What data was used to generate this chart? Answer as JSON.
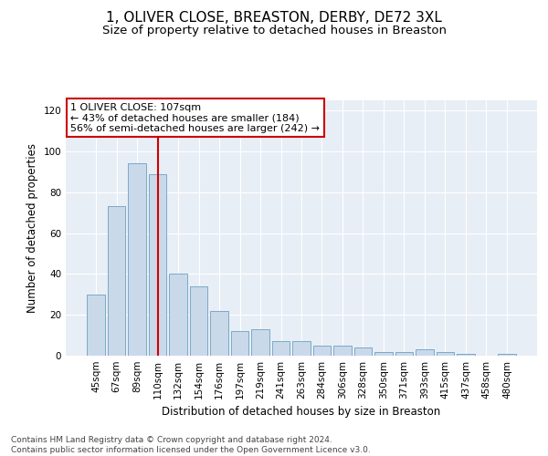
{
  "title": "1, OLIVER CLOSE, BREASTON, DERBY, DE72 3XL",
  "subtitle": "Size of property relative to detached houses in Breaston",
  "xlabel": "Distribution of detached houses by size in Breaston",
  "ylabel": "Number of detached properties",
  "categories": [
    "45sqm",
    "67sqm",
    "89sqm",
    "110sqm",
    "132sqm",
    "154sqm",
    "176sqm",
    "197sqm",
    "219sqm",
    "241sqm",
    "263sqm",
    "284sqm",
    "306sqm",
    "328sqm",
    "350sqm",
    "371sqm",
    "393sqm",
    "415sqm",
    "437sqm",
    "458sqm",
    "480sqm"
  ],
  "values": [
    30,
    73,
    94,
    89,
    40,
    34,
    22,
    12,
    13,
    7,
    7,
    5,
    5,
    4,
    2,
    2,
    3,
    2,
    1,
    0,
    1
  ],
  "bar_color": "#c9d9ea",
  "bar_edge_color": "#7aaac8",
  "vline_x_index": 3,
  "vline_color": "#cc0000",
  "annotation_text": "1 OLIVER CLOSE: 107sqm\n← 43% of detached houses are smaller (184)\n56% of semi-detached houses are larger (242) →",
  "annotation_box_color": "#ffffff",
  "annotation_box_edge": "#cc0000",
  "ylim": [
    0,
    125
  ],
  "yticks": [
    0,
    20,
    40,
    60,
    80,
    100,
    120
  ],
  "bg_color": "#e8eef5",
  "footer": "Contains HM Land Registry data © Crown copyright and database right 2024.\nContains public sector information licensed under the Open Government Licence v3.0.",
  "title_fontsize": 11,
  "subtitle_fontsize": 9.5,
  "axis_label_fontsize": 8.5,
  "tick_fontsize": 7.5,
  "annotation_fontsize": 8,
  "footer_fontsize": 6.5
}
